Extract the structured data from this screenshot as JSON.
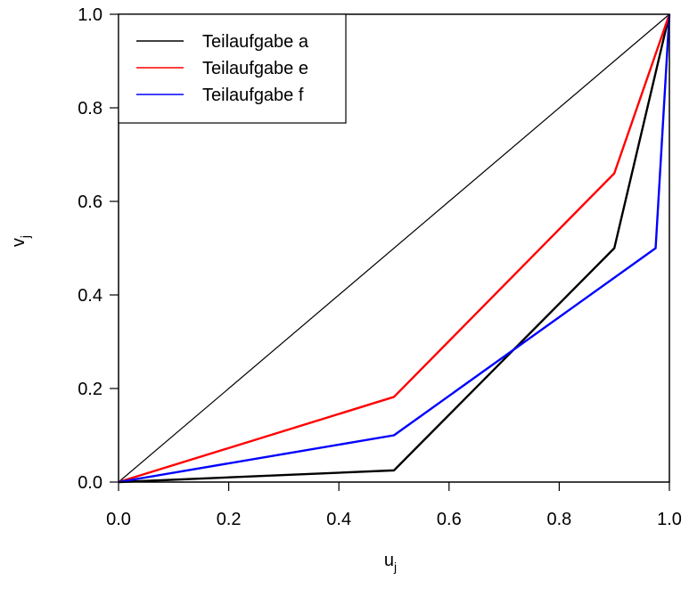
{
  "chart_data": {
    "type": "line",
    "xlabel": "u",
    "xlabel_sub": "j",
    "ylabel": "v",
    "ylabel_sub": "j",
    "xlim": [
      0,
      1
    ],
    "ylim": [
      0,
      1
    ],
    "xticks": [
      0.0,
      0.2,
      0.4,
      0.6,
      0.8,
      1.0
    ],
    "yticks": [
      0.0,
      0.2,
      0.4,
      0.6,
      0.8,
      1.0
    ],
    "xtick_labels": [
      "0.0",
      "0.2",
      "0.4",
      "0.6",
      "0.8",
      "1.0"
    ],
    "ytick_labels": [
      "0.0",
      "0.2",
      "0.4",
      "0.6",
      "0.8",
      "1.0"
    ],
    "grid": false,
    "legend_position": "top-left",
    "reference_line": {
      "x": [
        0,
        1
      ],
      "y": [
        0,
        1
      ],
      "color": "#000000"
    },
    "series": [
      {
        "name": "Teilaufgabe a",
        "color": "#000000",
        "x": [
          0,
          0.5,
          0.9,
          1.0
        ],
        "y": [
          0,
          0.025,
          0.5,
          1.0
        ]
      },
      {
        "name": "Teilaufgabe e",
        "color": "#ff0000",
        "x": [
          0,
          0.5,
          0.9,
          1.0
        ],
        "y": [
          0,
          0.182,
          0.66,
          1.0
        ]
      },
      {
        "name": "Teilaufgabe f",
        "color": "#0000ff",
        "x": [
          0,
          0.5,
          0.975,
          1.0
        ],
        "y": [
          0,
          0.1,
          0.5,
          1.0
        ]
      }
    ]
  }
}
